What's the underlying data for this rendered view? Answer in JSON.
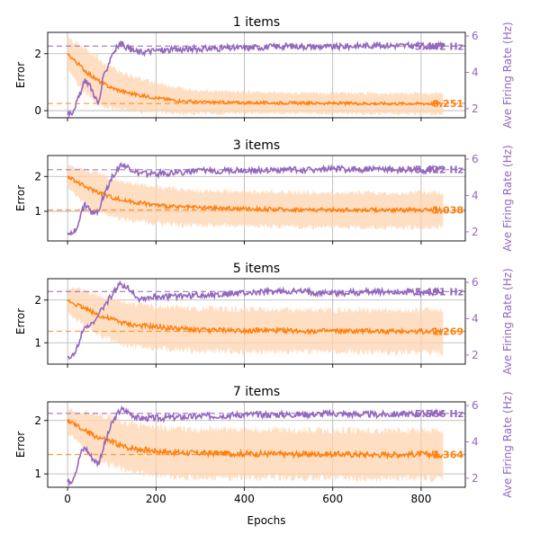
{
  "figure": {
    "xlabel": "Epochs"
  },
  "colors": {
    "error": "#ff7f0e",
    "error_band": "#ffd4b0",
    "rate": "#9467bd",
    "grid": "#b0b0b0",
    "axis": "#000000"
  },
  "chart_data": [
    {
      "type": "line",
      "title": "1 items",
      "xlabel": "Epochs",
      "ylabel": "Error",
      "ylabel_right": "Ave Firing Rate (Hz)",
      "xlim": [
        -45,
        900
      ],
      "ylim": [
        -0.25,
        2.75
      ],
      "ylim_right": [
        1.5,
        6.2
      ],
      "xticks": [
        0,
        200,
        400,
        600,
        800
      ],
      "yticks": [
        0,
        2
      ],
      "yticks_right": [
        2,
        4,
        6
      ],
      "grid": true,
      "series": [
        {
          "axis": "left",
          "x": [
            0,
            20,
            40,
            60,
            80,
            100,
            130,
            160,
            200,
            250,
            300,
            400,
            500,
            600,
            700,
            800,
            850
          ],
          "values": [
            2.0,
            1.7,
            1.4,
            1.15,
            0.95,
            0.8,
            0.65,
            0.55,
            0.45,
            0.35,
            0.3,
            0.28,
            0.27,
            0.26,
            0.25,
            0.25,
            0.25
          ],
          "band_halfwidth": [
            0.6,
            0.75,
            0.85,
            0.9,
            0.85,
            0.8,
            0.7,
            0.65,
            0.55,
            0.5,
            0.45,
            0.42,
            0.4,
            0.4,
            0.4,
            0.4,
            0.4
          ]
        },
        {
          "axis": "right",
          "x": [
            0,
            10,
            20,
            30,
            40,
            50,
            60,
            70,
            80,
            100,
            120,
            140,
            160,
            200,
            300,
            400,
            500,
            600,
            700,
            800,
            850
          ],
          "values": [
            1.8,
            1.8,
            2.3,
            2.9,
            3.6,
            3.3,
            2.8,
            2.2,
            3.6,
            5.0,
            5.6,
            5.3,
            5.1,
            5.2,
            5.3,
            5.35,
            5.45,
            5.4,
            5.5,
            5.45,
            5.44
          ]
        }
      ],
      "reference_lines": [
        {
          "axis": "right",
          "value": 5.442,
          "label": "5.442 Hz"
        },
        {
          "axis": "left",
          "value": 0.251,
          "label": "0.251"
        }
      ]
    },
    {
      "type": "line",
      "title": "3 items",
      "xlabel": "Epochs",
      "ylabel": "Error",
      "ylabel_right": "Ave Firing Rate (Hz)",
      "xlim": [
        -45,
        900
      ],
      "ylim": [
        0.15,
        2.6
      ],
      "ylim_right": [
        1.5,
        6.2
      ],
      "xticks": [
        0,
        200,
        400,
        600,
        800
      ],
      "yticks": [
        1,
        2
      ],
      "yticks_right": [
        2,
        4,
        6
      ],
      "grid": true,
      "series": [
        {
          "axis": "left",
          "x": [
            0,
            20,
            40,
            60,
            80,
            100,
            130,
            160,
            200,
            250,
            300,
            400,
            500,
            600,
            700,
            800,
            850
          ],
          "values": [
            2.0,
            1.85,
            1.7,
            1.6,
            1.5,
            1.4,
            1.3,
            1.25,
            1.18,
            1.12,
            1.1,
            1.07,
            1.05,
            1.04,
            1.04,
            1.04,
            1.04
          ],
          "band_halfwidth": [
            0.35,
            0.45,
            0.55,
            0.6,
            0.62,
            0.62,
            0.6,
            0.6,
            0.6,
            0.58,
            0.55,
            0.55,
            0.55,
            0.55,
            0.55,
            0.55,
            0.55
          ]
        },
        {
          "axis": "right",
          "x": [
            0,
            10,
            20,
            30,
            40,
            50,
            60,
            70,
            80,
            100,
            120,
            140,
            160,
            200,
            300,
            400,
            500,
            600,
            700,
            800,
            850
          ],
          "values": [
            1.8,
            1.9,
            2.2,
            3.0,
            3.5,
            3.2,
            3.0,
            3.2,
            3.9,
            5.0,
            5.7,
            5.5,
            5.2,
            5.2,
            5.35,
            5.4,
            5.4,
            5.45,
            5.45,
            5.4,
            5.42
          ]
        }
      ],
      "reference_lines": [
        {
          "axis": "right",
          "value": 5.422,
          "label": "5.422 Hz"
        },
        {
          "axis": "left",
          "value": 1.038,
          "label": "1.038"
        }
      ]
    },
    {
      "type": "line",
      "title": "5 items",
      "xlabel": "Epochs",
      "ylabel": "Error",
      "ylabel_right": "Ave Firing Rate (Hz)",
      "xlim": [
        -45,
        900
      ],
      "ylim": [
        0.5,
        2.5
      ],
      "ylim_right": [
        1.5,
        6.2
      ],
      "xticks": [
        0,
        200,
        400,
        600,
        800
      ],
      "yticks": [
        1,
        2
      ],
      "yticks_right": [
        2,
        4,
        6
      ],
      "grid": true,
      "series": [
        {
          "axis": "left",
          "x": [
            0,
            20,
            40,
            60,
            80,
            100,
            130,
            160,
            200,
            250,
            300,
            400,
            500,
            600,
            700,
            800,
            850
          ],
          "values": [
            2.0,
            1.9,
            1.8,
            1.7,
            1.6,
            1.55,
            1.45,
            1.4,
            1.37,
            1.33,
            1.3,
            1.29,
            1.28,
            1.27,
            1.27,
            1.27,
            1.27
          ],
          "band_halfwidth": [
            0.3,
            0.4,
            0.45,
            0.5,
            0.52,
            0.55,
            0.55,
            0.55,
            0.55,
            0.55,
            0.55,
            0.55,
            0.55,
            0.55,
            0.55,
            0.55,
            0.55
          ]
        },
        {
          "axis": "right",
          "x": [
            0,
            10,
            20,
            30,
            40,
            50,
            60,
            70,
            80,
            100,
            120,
            140,
            160,
            200,
            300,
            400,
            500,
            600,
            700,
            800,
            850
          ],
          "values": [
            1.8,
            1.9,
            2.3,
            3.1,
            3.7,
            3.6,
            3.7,
            4.2,
            4.6,
            5.3,
            5.9,
            5.7,
            5.1,
            5.2,
            5.3,
            5.4,
            5.5,
            5.4,
            5.5,
            5.45,
            5.49
          ]
        }
      ],
      "reference_lines": [
        {
          "axis": "right",
          "value": 5.491,
          "label": "5.491 Hz"
        },
        {
          "axis": "left",
          "value": 1.269,
          "label": "1.269"
        }
      ]
    },
    {
      "type": "line",
      "title": "7 items",
      "xlabel": "Epochs",
      "ylabel": "Error",
      "ylabel_right": "Ave Firing Rate (Hz)",
      "xlim": [
        -45,
        900
      ],
      "ylim": [
        0.75,
        2.35
      ],
      "ylim_right": [
        1.5,
        6.2
      ],
      "xticks": [
        0,
        200,
        400,
        600,
        800
      ],
      "yticks": [
        1,
        2
      ],
      "yticks_right": [
        2,
        4,
        6
      ],
      "grid": true,
      "series": [
        {
          "axis": "left",
          "x": [
            0,
            20,
            40,
            60,
            80,
            100,
            130,
            160,
            200,
            250,
            300,
            400,
            500,
            600,
            700,
            800,
            850
          ],
          "values": [
            2.0,
            1.9,
            1.8,
            1.72,
            1.65,
            1.6,
            1.5,
            1.47,
            1.43,
            1.4,
            1.39,
            1.38,
            1.37,
            1.37,
            1.36,
            1.37,
            1.36
          ],
          "band_halfwidth": [
            0.25,
            0.3,
            0.4,
            0.45,
            0.48,
            0.5,
            0.5,
            0.5,
            0.5,
            0.5,
            0.5,
            0.5,
            0.5,
            0.5,
            0.5,
            0.5,
            0.5
          ]
        },
        {
          "axis": "right",
          "x": [
            0,
            10,
            20,
            30,
            40,
            50,
            60,
            70,
            80,
            100,
            120,
            140,
            160,
            200,
            300,
            400,
            500,
            600,
            700,
            800,
            850
          ],
          "values": [
            1.8,
            1.9,
            2.5,
            3.4,
            3.7,
            3.3,
            3.0,
            2.8,
            3.6,
            5.0,
            5.8,
            5.6,
            5.3,
            5.3,
            5.4,
            5.5,
            5.5,
            5.55,
            5.5,
            5.55,
            5.57
          ]
        }
      ],
      "reference_lines": [
        {
          "axis": "right",
          "value": 5.566,
          "label": "5.566 Hz"
        },
        {
          "axis": "left",
          "value": 1.364,
          "label": "1.364"
        }
      ]
    }
  ]
}
